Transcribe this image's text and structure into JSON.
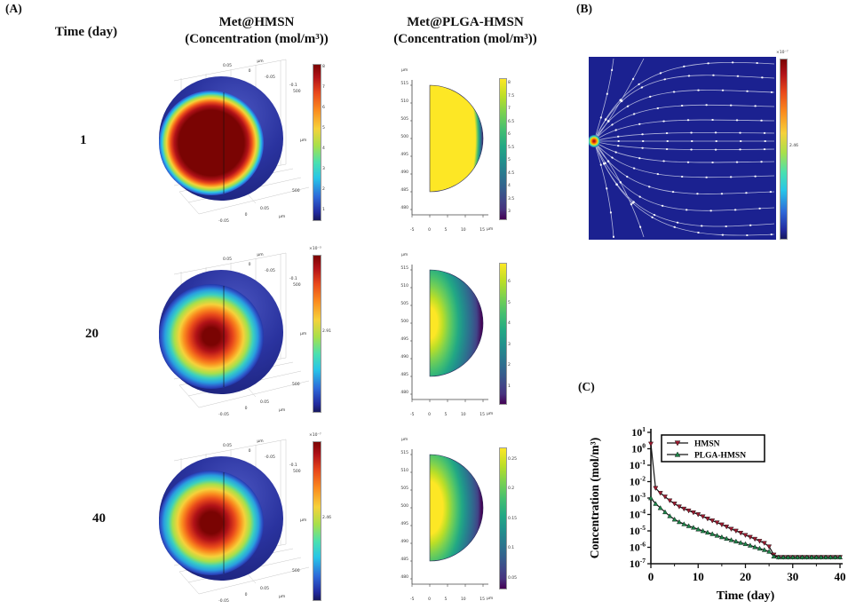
{
  "figure": {
    "panel_a_label": "(A)",
    "panel_b_label": "(B)",
    "panel_c_label": "(C)",
    "col_time_header": "Time (day)",
    "col_hmsn": {
      "line1": "Met@HMSN",
      "line2": "(Concentration (mol/m³))"
    },
    "col_plga": {
      "line1": "Met@PLGA-HMSN",
      "line2": "(Concentration (mol/m³))"
    },
    "sphere_axis": {
      "t1": "0.05",
      "t2": "0",
      "t3": "-0.05",
      "t_um": "µm",
      "r1": "-0.1",
      "r2": "500",
      "r_um": "µm",
      "r3": "500",
      "b1": "0.05",
      "b2": "0",
      "b3": "-0.05",
      "b_um": "µm"
    },
    "semi_axis": {
      "unit": "µm",
      "y_ticks": [
        "515",
        "510",
        "505",
        "500",
        "495",
        "490",
        "485",
        "480"
      ],
      "x_ticks": [
        "-5",
        "0",
        "5",
        "10",
        "15"
      ],
      "x_unit": "µm"
    },
    "rows": [
      {
        "time": "1",
        "cb3d_ticks": [
          "8",
          "7",
          "6",
          "5",
          "4",
          "3",
          "2",
          "1"
        ],
        "cb2d_ticks": [
          "8",
          "7.5",
          "7",
          "6.5",
          "6",
          "5.5",
          "5",
          "4.5",
          "4",
          "3.5",
          "3"
        ]
      },
      {
        "time": "20",
        "cb3d_exp": "×10⁻³",
        "cb3d_mid": "2.91",
        "cb2d_ticks": [
          "6",
          "5",
          "4",
          "3",
          "2",
          "1"
        ]
      },
      {
        "time": "40",
        "cb3d_exp": "×10⁻⁷",
        "cb3d_mid": "2.46",
        "cb2d_ticks": [
          "0.25",
          "0.2",
          "0.15",
          "0.1",
          "0.05"
        ]
      }
    ],
    "panel_b": {
      "cb_exp": "×10⁻⁷",
      "cb_mid": "2.46"
    }
  },
  "chart_data": {
    "type": "line",
    "title": "",
    "xlabel": "Time (day)",
    "ylabel": "Concentration (mol/m³)",
    "x_ticks": [
      0,
      10,
      20,
      30,
      40
    ],
    "xlim": [
      0,
      40
    ],
    "ylim_exponents": [
      1,
      -7
    ],
    "yscale": "log",
    "grid": false,
    "legend_position": "top-left",
    "series": [
      {
        "name": "HMSN",
        "color": "#9b1b30",
        "marker": "triangle-down",
        "x": [
          0,
          1,
          2,
          3,
          4,
          5,
          6,
          7,
          8,
          9,
          10,
          11,
          12,
          13,
          14,
          15,
          16,
          17,
          18,
          19,
          20,
          21,
          22,
          23,
          24,
          25,
          26,
          27,
          28,
          29,
          30,
          31,
          32,
          33,
          34,
          35,
          36,
          37,
          38,
          39,
          40
        ],
        "y": [
          2,
          0.004,
          0.002,
          0.0012,
          0.0007,
          0.00045,
          0.0003,
          0.00022,
          0.00017,
          0.00013,
          0.0001,
          7.5e-05,
          5.5e-05,
          4.2e-05,
          3.2e-05,
          2.4e-05,
          1.8e-05,
          1.3e-05,
          1e-05,
          7.5e-06,
          5.5e-06,
          4.2e-06,
          3.2e-06,
          2.4e-06,
          1.8e-06,
          1.1e-06,
          3.5e-07,
          2.5e-07,
          2.5e-07,
          2.5e-07,
          2.5e-07,
          2.5e-07,
          2.5e-07,
          2.5e-07,
          2.5e-07,
          2.5e-07,
          2.5e-07,
          2.5e-07,
          2.5e-07,
          2.5e-07,
          2.5e-07
        ]
      },
      {
        "name": "PLGA-HMSN",
        "color": "#1e8449",
        "marker": "triangle-up",
        "x": [
          0,
          1,
          2,
          3,
          4,
          5,
          6,
          7,
          8,
          9,
          10,
          11,
          12,
          13,
          14,
          15,
          16,
          17,
          18,
          19,
          20,
          21,
          22,
          23,
          24,
          25,
          26,
          27,
          28,
          29,
          30,
          31,
          32,
          33,
          34,
          35,
          36,
          37,
          38,
          39,
          40
        ],
        "y": [
          0.001,
          0.00045,
          0.00025,
          0.00014,
          8e-05,
          5e-05,
          3.5e-05,
          2.6e-05,
          2e-05,
          1.6e-05,
          1.25e-05,
          1e-05,
          8e-06,
          6.5e-06,
          5.2e-06,
          4.2e-06,
          3.4e-06,
          2.8e-06,
          2.3e-06,
          1.9e-06,
          1.6e-06,
          1.3e-06,
          1.05e-06,
          8.5e-07,
          7e-07,
          5.5e-07,
          2.8e-07,
          2.5e-07,
          2.5e-07,
          2.5e-07,
          2.5e-07,
          2.5e-07,
          2.5e-07,
          2.5e-07,
          2.5e-07,
          2.5e-07,
          2.5e-07,
          2.5e-07,
          2.5e-07,
          2.5e-07,
          2.5e-07
        ]
      }
    ]
  }
}
